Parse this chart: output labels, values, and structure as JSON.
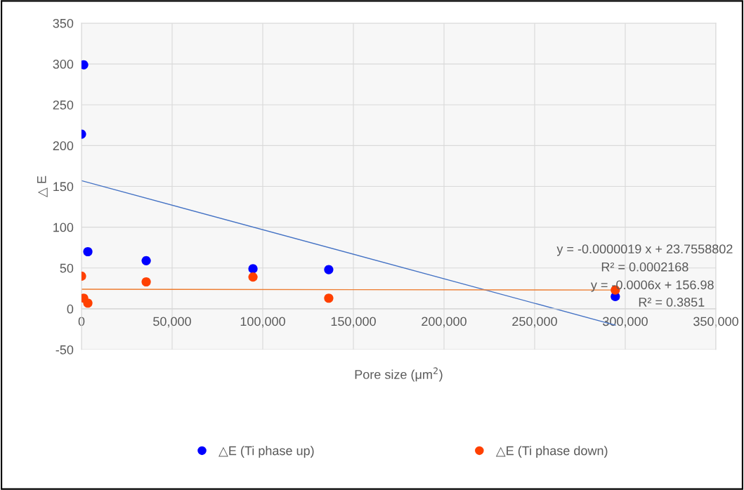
{
  "chart_data": {
    "type": "scatter",
    "xlabel": "Pore size (μm$^{2}$)",
    "ylabel": "△ E",
    "xlim": [
      0,
      350000
    ],
    "ylim": [
      -50,
      350
    ],
    "xticks": [
      0,
      {
        "value": 50000,
        "label": "50,000"
      },
      {
        "value": 100000,
        "label": "100,000"
      },
      {
        "value": 150000,
        "label": "150,000"
      },
      {
        "value": 200000,
        "label": "200,000"
      },
      {
        "value": 250000,
        "label": "250,000"
      },
      {
        "value": 300000,
        "label": "300,000"
      },
      {
        "value": 350000,
        "label": "350,000"
      }
    ],
    "yticks": [
      -50,
      0,
      50,
      100,
      150,
      200,
      250,
      300,
      350
    ],
    "grid": true,
    "legend": "bottom",
    "marker": "circle",
    "series": [
      {
        "name": "△E (Ti phase up)",
        "color": "#0000ff",
        "x": [
          0,
          1200,
          3500,
          35700,
          94600,
          136400,
          294500
        ],
        "values": [
          214,
          299,
          70,
          59,
          49,
          48,
          15
        ]
      },
      {
        "name": "△E (Ti phase down)",
        "color": "#ff4000",
        "x": [
          0,
          1200,
          3500,
          35700,
          94600,
          136400,
          294500
        ],
        "values": [
          40,
          13,
          7,
          33,
          39,
          13,
          23
        ]
      },
      {
        "type": "line",
        "marker": "none",
        "color": "#4472c4",
        "x": [
          0,
          294500
        ],
        "values": [
          157,
          -20
        ]
      },
      {
        "type": "line",
        "marker": "none",
        "color": "#ed7d31",
        "x": [
          0,
          294500
        ],
        "values": [
          24,
          23
        ]
      }
    ],
    "annotations": [
      "y = -0.0000019 x + 23.7558802",
      "R² = 0.0002168",
      "y = -0.0006x + 156.98",
      "R² = 0.3851"
    ]
  }
}
